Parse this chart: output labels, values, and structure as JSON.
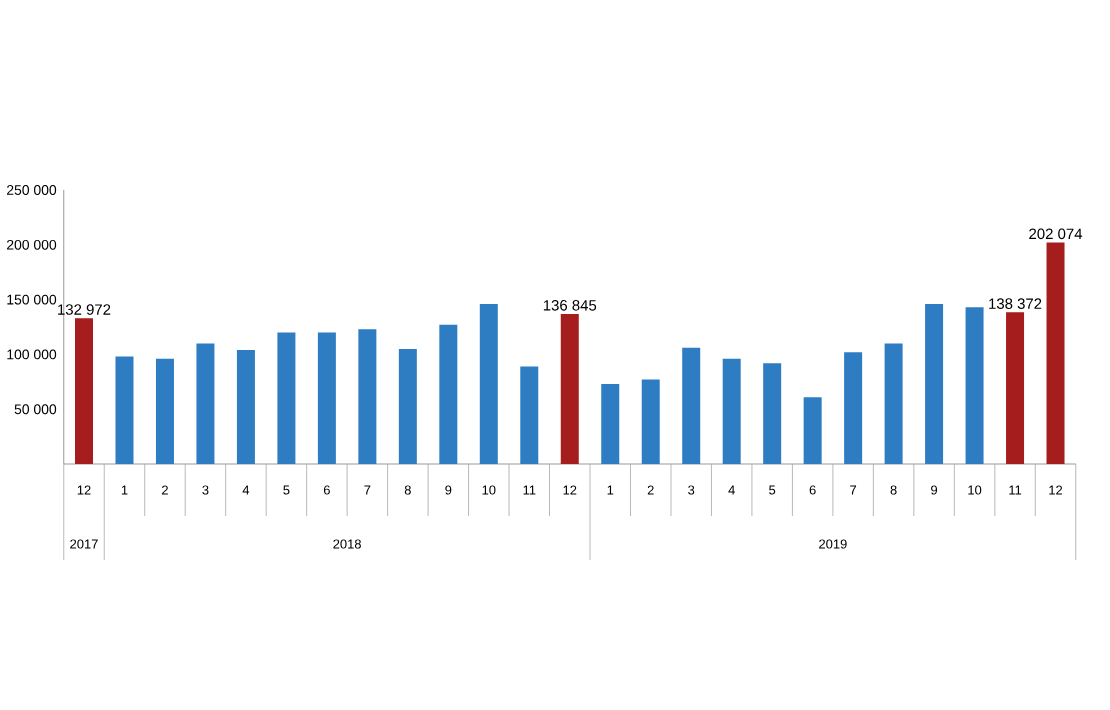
{
  "chart_data": {
    "type": "bar",
    "categories": [
      "12",
      "1",
      "2",
      "3",
      "4",
      "5",
      "6",
      "7",
      "8",
      "9",
      "10",
      "11",
      "12",
      "1",
      "2",
      "3",
      "4",
      "5",
      "6",
      "7",
      "8",
      "9",
      "10",
      "11",
      "12"
    ],
    "values": [
      132972,
      98000,
      96000,
      110000,
      104000,
      120000,
      120000,
      123000,
      105000,
      127000,
      146000,
      89000,
      136845,
      73000,
      77000,
      106000,
      96000,
      92000,
      61000,
      102000,
      110000,
      146000,
      143000,
      138372,
      202074
    ],
    "colors": [
      "#a51d1d",
      "#2e7dc2",
      "#2e7dc2",
      "#2e7dc2",
      "#2e7dc2",
      "#2e7dc2",
      "#2e7dc2",
      "#2e7dc2",
      "#2e7dc2",
      "#2e7dc2",
      "#2e7dc2",
      "#2e7dc2",
      "#a51d1d",
      "#2e7dc2",
      "#2e7dc2",
      "#2e7dc2",
      "#2e7dc2",
      "#2e7dc2",
      "#2e7dc2",
      "#2e7dc2",
      "#2e7dc2",
      "#2e7dc2",
      "#2e7dc2",
      "#a51d1d",
      "#a51d1d"
    ],
    "value_labels": [
      "132 972",
      null,
      null,
      null,
      null,
      null,
      null,
      null,
      null,
      null,
      null,
      null,
      "136 845",
      null,
      null,
      null,
      null,
      null,
      null,
      null,
      null,
      null,
      null,
      "138 372",
      "202 074"
    ],
    "annotations": [
      "2017",
      "2018",
      "2019"
    ],
    "ylim": [
      0,
      250000
    ],
    "yticks": [
      {
        "value": 50000,
        "label": "50 000"
      },
      {
        "value": 100000,
        "label": "100 000"
      },
      {
        "value": 150000,
        "label": "150 000"
      },
      {
        "value": 200000,
        "label": "200 000"
      },
      {
        "value": 250000,
        "label": "250 000"
      }
    ],
    "grid": false
  }
}
